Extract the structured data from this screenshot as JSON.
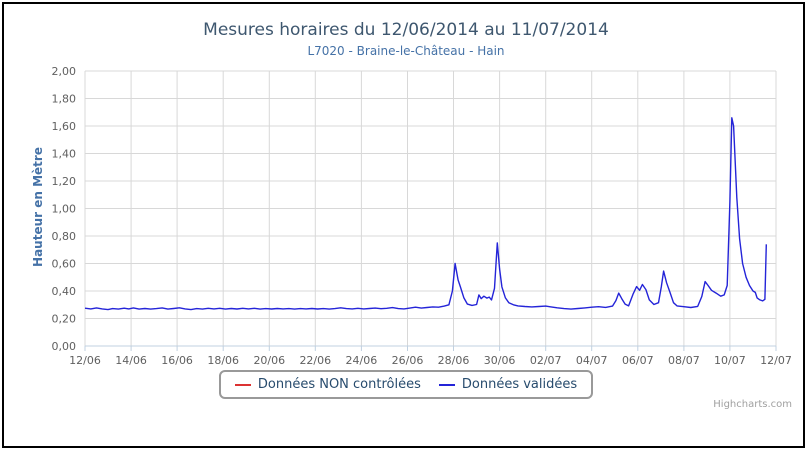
{
  "page": {
    "background_color": "#ffffff",
    "frame_border_color": "#000000"
  },
  "chart": {
    "title": "Mesures horaires du 12/06/2014 au 11/07/2014",
    "subtitle": "L7020 - Braine-le-Château - Hain",
    "y_axis_title": "Hauteur en Mètre",
    "credits": "Highcharts.com",
    "title_color": "#3E576F",
    "subtitle_color": "#4572A7",
    "legend_text_color": "#274B6D"
  },
  "chart_data": {
    "type": "line",
    "title": "Mesures horaires du 12/06/2014 au 11/07/2014",
    "subtitle": "L7020 - Braine-le-Château - Hain",
    "xlabel": "",
    "ylabel": "Hauteur en Mètre",
    "x_unit": "days since 12/06/2014 00:00",
    "xlim": [
      0,
      30
    ],
    "ylim": [
      0,
      2
    ],
    "grid": "on",
    "legend_position": "bottom",
    "grid_color": "#D8D8D8",
    "axis_line_color": "#C0D0E0",
    "axis_label_color": "#606060",
    "yticks": [
      {
        "value": 0.0,
        "label": "0,00"
      },
      {
        "value": 0.2,
        "label": "0,20"
      },
      {
        "value": 0.4,
        "label": "0,40"
      },
      {
        "value": 0.6,
        "label": "0,60"
      },
      {
        "value": 0.8,
        "label": "0,80"
      },
      {
        "value": 1.0,
        "label": "1,00"
      },
      {
        "value": 1.2,
        "label": "1,20"
      },
      {
        "value": 1.4,
        "label": "1,40"
      },
      {
        "value": 1.6,
        "label": "1,60"
      },
      {
        "value": 1.8,
        "label": "1,80"
      },
      {
        "value": 2.0,
        "label": "2,00"
      }
    ],
    "xticks": [
      {
        "day": 0,
        "label": "12/06"
      },
      {
        "day": 2,
        "label": "14/06"
      },
      {
        "day": 4,
        "label": "16/06"
      },
      {
        "day": 6,
        "label": "18/06"
      },
      {
        "day": 8,
        "label": "20/06"
      },
      {
        "day": 10,
        "label": "22/06"
      },
      {
        "day": 12,
        "label": "24/06"
      },
      {
        "day": 14,
        "label": "26/06"
      },
      {
        "day": 16,
        "label": "28/06"
      },
      {
        "day": 18,
        "label": "30/06"
      },
      {
        "day": 20,
        "label": "02/07"
      },
      {
        "day": 22,
        "label": "04/07"
      },
      {
        "day": 24,
        "label": "06/07"
      },
      {
        "day": 26,
        "label": "08/07"
      },
      {
        "day": 28,
        "label": "10/07"
      },
      {
        "day": 30,
        "label": "12/07"
      }
    ],
    "series": [
      {
        "name": "Données NON contrôlées",
        "color": "#DC3232",
        "points": []
      },
      {
        "name": "Données validées",
        "color": "#2424D8",
        "points": [
          [
            0,
            0.275
          ],
          [
            0.25,
            0.27
          ],
          [
            0.5,
            0.277
          ],
          [
            0.75,
            0.27
          ],
          [
            1,
            0.265
          ],
          [
            1.2,
            0.272
          ],
          [
            1.45,
            0.268
          ],
          [
            1.7,
            0.275
          ],
          [
            1.9,
            0.27
          ],
          [
            2.1,
            0.277
          ],
          [
            2.35,
            0.268
          ],
          [
            2.6,
            0.273
          ],
          [
            2.85,
            0.268
          ],
          [
            3.1,
            0.272
          ],
          [
            3.35,
            0.277
          ],
          [
            3.6,
            0.268
          ],
          [
            3.85,
            0.273
          ],
          [
            4.1,
            0.278
          ],
          [
            4.35,
            0.27
          ],
          [
            4.6,
            0.265
          ],
          [
            4.85,
            0.272
          ],
          [
            5.1,
            0.268
          ],
          [
            5.35,
            0.274
          ],
          [
            5.6,
            0.27
          ],
          [
            5.85,
            0.274
          ],
          [
            6.1,
            0.268
          ],
          [
            6.35,
            0.273
          ],
          [
            6.6,
            0.269
          ],
          [
            6.85,
            0.274
          ],
          [
            7.1,
            0.27
          ],
          [
            7.35,
            0.274
          ],
          [
            7.6,
            0.268
          ],
          [
            7.85,
            0.272
          ],
          [
            8.1,
            0.269
          ],
          [
            8.35,
            0.273
          ],
          [
            8.6,
            0.27
          ],
          [
            8.85,
            0.272
          ],
          [
            9.1,
            0.268
          ],
          [
            9.35,
            0.272
          ],
          [
            9.6,
            0.27
          ],
          [
            9.85,
            0.273
          ],
          [
            10.1,
            0.269
          ],
          [
            10.35,
            0.272
          ],
          [
            10.6,
            0.268
          ],
          [
            10.85,
            0.272
          ],
          [
            11.1,
            0.278
          ],
          [
            11.35,
            0.272
          ],
          [
            11.6,
            0.27
          ],
          [
            11.85,
            0.274
          ],
          [
            12.1,
            0.27
          ],
          [
            12.35,
            0.273
          ],
          [
            12.6,
            0.276
          ],
          [
            12.85,
            0.271
          ],
          [
            13.1,
            0.274
          ],
          [
            13.35,
            0.279
          ],
          [
            13.6,
            0.272
          ],
          [
            13.85,
            0.27
          ],
          [
            14.1,
            0.276
          ],
          [
            14.35,
            0.282
          ],
          [
            14.6,
            0.276
          ],
          [
            14.85,
            0.28
          ],
          [
            15.1,
            0.284
          ],
          [
            15.35,
            0.282
          ],
          [
            15.6,
            0.29
          ],
          [
            15.8,
            0.3
          ],
          [
            15.95,
            0.4
          ],
          [
            16.07,
            0.6
          ],
          [
            16.2,
            0.48
          ],
          [
            16.3,
            0.43
          ],
          [
            16.45,
            0.35
          ],
          [
            16.6,
            0.305
          ],
          [
            16.8,
            0.295
          ],
          [
            17,
            0.302
          ],
          [
            17.1,
            0.372
          ],
          [
            17.2,
            0.345
          ],
          [
            17.32,
            0.362
          ],
          [
            17.45,
            0.348
          ],
          [
            17.55,
            0.356
          ],
          [
            17.65,
            0.335
          ],
          [
            17.78,
            0.42
          ],
          [
            17.9,
            0.75
          ],
          [
            18,
            0.56
          ],
          [
            18.1,
            0.43
          ],
          [
            18.25,
            0.35
          ],
          [
            18.4,
            0.315
          ],
          [
            18.6,
            0.3
          ],
          [
            18.8,
            0.292
          ],
          [
            19.1,
            0.287
          ],
          [
            19.4,
            0.284
          ],
          [
            19.7,
            0.287
          ],
          [
            20,
            0.29
          ],
          [
            20.2,
            0.285
          ],
          [
            20.5,
            0.278
          ],
          [
            20.8,
            0.272
          ],
          [
            21.1,
            0.268
          ],
          [
            21.4,
            0.273
          ],
          [
            21.7,
            0.277
          ],
          [
            22,
            0.282
          ],
          [
            22.3,
            0.286
          ],
          [
            22.6,
            0.281
          ],
          [
            22.9,
            0.29
          ],
          [
            23.05,
            0.33
          ],
          [
            23.17,
            0.385
          ],
          [
            23.3,
            0.345
          ],
          [
            23.45,
            0.305
          ],
          [
            23.6,
            0.292
          ],
          [
            23.8,
            0.38
          ],
          [
            23.95,
            0.432
          ],
          [
            24.08,
            0.405
          ],
          [
            24.2,
            0.447
          ],
          [
            24.35,
            0.41
          ],
          [
            24.5,
            0.335
          ],
          [
            24.7,
            0.302
          ],
          [
            24.9,
            0.315
          ],
          [
            25.02,
            0.43
          ],
          [
            25.12,
            0.545
          ],
          [
            25.25,
            0.46
          ],
          [
            25.4,
            0.39
          ],
          [
            25.55,
            0.315
          ],
          [
            25.7,
            0.292
          ],
          [
            26,
            0.286
          ],
          [
            26.3,
            0.28
          ],
          [
            26.6,
            0.288
          ],
          [
            26.78,
            0.36
          ],
          [
            26.92,
            0.468
          ],
          [
            27.05,
            0.44
          ],
          [
            27.2,
            0.405
          ],
          [
            27.4,
            0.385
          ],
          [
            27.6,
            0.362
          ],
          [
            27.75,
            0.372
          ],
          [
            27.88,
            0.44
          ],
          [
            28,
            1.05
          ],
          [
            28.08,
            1.66
          ],
          [
            28.16,
            1.6
          ],
          [
            28.3,
            1.08
          ],
          [
            28.42,
            0.78
          ],
          [
            28.55,
            0.6
          ],
          [
            28.7,
            0.5
          ],
          [
            28.85,
            0.44
          ],
          [
            29,
            0.4
          ],
          [
            29.1,
            0.39
          ],
          [
            29.18,
            0.35
          ],
          [
            29.3,
            0.335
          ],
          [
            29.42,
            0.328
          ],
          [
            29.52,
            0.34
          ],
          [
            29.58,
            0.74
          ]
        ]
      }
    ]
  }
}
